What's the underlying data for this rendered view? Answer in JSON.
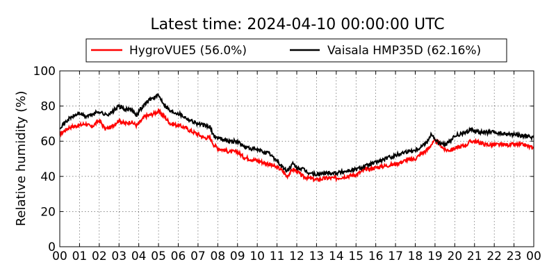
{
  "chart_data": {
    "type": "line",
    "title": "Latest time: 2024-04-10 00:00:00 UTC",
    "xlabel": "",
    "ylabel": "Relative humidity (%)",
    "x_unit": "hour",
    "xlim": [
      0,
      24
    ],
    "ylim": [
      0,
      100
    ],
    "grid": true,
    "legend_position": "top",
    "x_ticks": [
      0,
      1,
      2,
      3,
      4,
      5,
      6,
      7,
      8,
      9,
      10,
      11,
      12,
      13,
      14,
      15,
      16,
      17,
      18,
      19,
      20,
      21,
      22,
      23,
      24
    ],
    "x_tick_labels": [
      "00",
      "01",
      "02",
      "03",
      "04",
      "05",
      "06",
      "07",
      "08",
      "09",
      "10",
      "11",
      "12",
      "13",
      "14",
      "15",
      "16",
      "17",
      "18",
      "19",
      "20",
      "21",
      "22",
      "23",
      "00"
    ],
    "y_ticks": [
      0,
      20,
      40,
      60,
      80,
      100
    ],
    "y_tick_labels": [
      "0",
      "20",
      "40",
      "60",
      "80",
      "100"
    ],
    "series": [
      {
        "name": "HygroVUE5 (56.0%)",
        "color": "#ff0000",
        "x": [
          0,
          0.5,
          1,
          1.3,
          1.6,
          2,
          2.3,
          2.6,
          3,
          3.3,
          3.6,
          3.9,
          4,
          4.3,
          4.6,
          5,
          5.3,
          5.6,
          6,
          6.3,
          6.6,
          7,
          7.3,
          7.6,
          7.8,
          8,
          8.3,
          8.6,
          9,
          9.3,
          9.6,
          10,
          10.3,
          10.6,
          11,
          11.2,
          11.5,
          11.8,
          12,
          12.3,
          12.6,
          13,
          13.5,
          14,
          14.5,
          15,
          15.5,
          16,
          16.5,
          17,
          17.5,
          18,
          18.3,
          18.6,
          18.8,
          19,
          19.2,
          19.5,
          19.8,
          20,
          20.3,
          20.6,
          20.8,
          21,
          21.3,
          21.6,
          22,
          22.5,
          23,
          23.5,
          24
        ],
        "values": [
          64,
          68,
          69,
          70,
          68,
          72,
          67,
          68,
          72,
          70,
          71,
          69,
          70,
          74,
          75,
          77,
          74,
          70,
          69,
          68,
          66,
          64,
          62,
          62,
          58,
          56,
          55,
          54,
          54,
          51,
          50,
          49,
          48,
          47,
          45,
          44,
          40,
          44,
          43,
          40,
          39,
          38,
          39,
          39,
          40,
          41,
          44,
          45,
          46,
          47,
          49,
          50,
          53,
          55,
          58,
          60,
          59,
          55,
          55,
          56,
          57,
          58,
          60,
          60,
          59,
          58,
          58,
          58,
          58,
          58,
          56
        ]
      },
      {
        "name": "Vaisala HMP35D (62.16%)",
        "color": "#000000",
        "x": [
          0,
          0.5,
          1,
          1.3,
          1.6,
          2,
          2.3,
          2.6,
          3,
          3.3,
          3.6,
          3.9,
          4,
          4.3,
          4.6,
          5,
          5.3,
          5.6,
          6,
          6.3,
          6.6,
          7,
          7.3,
          7.6,
          7.8,
          8,
          8.3,
          8.6,
          9,
          9.3,
          9.6,
          10,
          10.3,
          10.6,
          11,
          11.2,
          11.5,
          11.8,
          12,
          12.3,
          12.6,
          13,
          13.5,
          14,
          14.5,
          15,
          15.5,
          16,
          16.5,
          17,
          17.5,
          18,
          18.3,
          18.6,
          18.8,
          19,
          19.2,
          19.5,
          19.8,
          20,
          20.3,
          20.6,
          20.8,
          21,
          21.3,
          21.6,
          22,
          22.5,
          23,
          23.5,
          24
        ],
        "values": [
          68,
          73,
          76,
          74,
          75,
          77,
          75,
          76,
          80,
          78,
          78,
          75,
          77,
          81,
          84,
          86,
          81,
          77,
          76,
          74,
          72,
          70,
          69,
          68,
          63,
          62,
          61,
          60,
          60,
          57,
          56,
          55,
          54,
          53,
          49,
          46,
          43,
          47,
          45,
          44,
          42,
          41,
          42,
          42,
          43,
          44,
          46,
          48,
          50,
          52,
          54,
          55,
          57,
          60,
          64,
          61,
          59,
          58,
          60,
          63,
          64,
          65,
          67,
          66,
          65,
          65,
          65,
          64,
          64,
          63,
          62
        ]
      }
    ]
  }
}
